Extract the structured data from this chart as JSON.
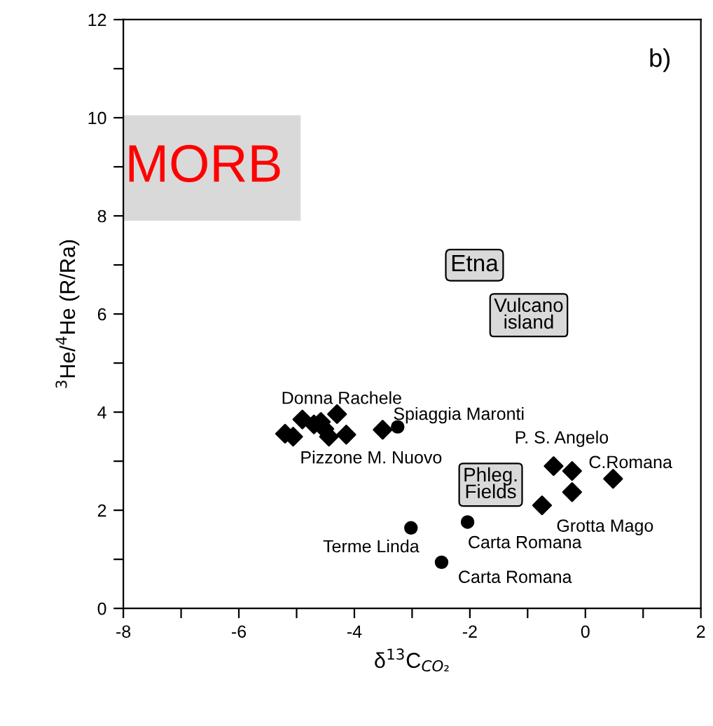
{
  "chart_data": {
    "type": "scatter",
    "xlabel": "δ$^{13}$C$_{CO₂}$",
    "ylabel": "$^{3}$He/$^{4}$He (R/Ra)",
    "series": [
      {
        "color": "#000000",
        "marker": "diamond",
        "x": [
          -5.2,
          -5.06,
          -4.9,
          -4.7,
          -4.58,
          -4.52,
          -4.44,
          -4.3,
          -4.14,
          -3.51,
          -0.55,
          -0.23,
          -0.23,
          -0.75,
          0.48
        ],
        "values": [
          3.56,
          3.5,
          3.85,
          3.75,
          3.8,
          3.66,
          3.5,
          3.96,
          3.54,
          3.64,
          2.9,
          2.8,
          2.37,
          2.1,
          2.64
        ]
      },
      {
        "color": "#000000",
        "marker": "circle",
        "x": [
          -3.25,
          -3.02,
          -2.49,
          -2.04
        ],
        "values": [
          3.7,
          1.64,
          0.94,
          1.76
        ]
      }
    ],
    "xlim": [
      -8,
      2
    ],
    "ylim": [
      0,
      12
    ],
    "xticks": [
      -8,
      {
        "value": -7,
        "label": null
      },
      -6,
      {
        "value": -5,
        "label": null
      },
      -4,
      {
        "value": -3,
        "label": null
      },
      -2,
      {
        "value": -1,
        "label": null
      },
      0,
      {
        "value": 1,
        "label": null
      },
      2
    ],
    "yticks": [
      0,
      {
        "value": 1,
        "label": null
      },
      2,
      {
        "value": 3,
        "label": null
      },
      4,
      {
        "value": 5,
        "label": null
      },
      6,
      {
        "value": 7,
        "label": null
      },
      8,
      {
        "value": 9,
        "label": null
      },
      10,
      {
        "value": 11,
        "label": null
      },
      12
    ],
    "bands": [
      {
        "axis": "y",
        "from": 7.9,
        "to": 10.05,
        "label": "MORB",
        "color": "#d9d9d9"
      }
    ],
    "annotations": [
      "b)",
      "Donna Rachele",
      "Spiaggia Maronti",
      "Pizzone M. Nuovo",
      "P. S. Angelo",
      "C.Romana",
      "Grotta Mago",
      "Terme Linda",
      "Carta Romana",
      "Carta Romana",
      "Phleg.\nFields",
      "Etna",
      "Vulcano\nisland"
    ],
    "grid": false
  }
}
